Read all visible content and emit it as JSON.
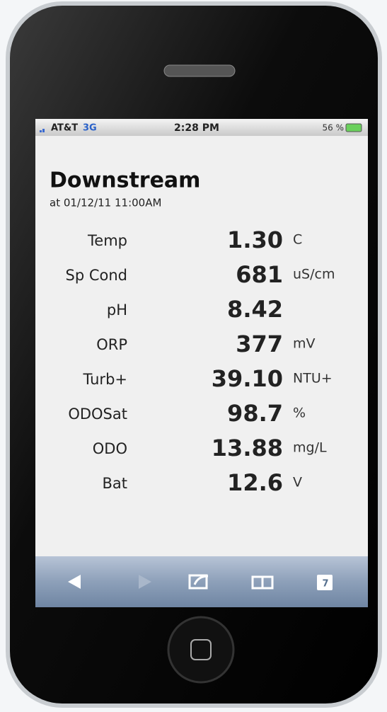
{
  "status_bar": {
    "carrier": "AT&T",
    "network": "3G",
    "time": "2:28 PM",
    "battery": "56 %"
  },
  "header": {
    "title": "Downstream",
    "timestamp": "at 01/12/11  11:00AM"
  },
  "readings": [
    {
      "label": "Temp",
      "value": "1.30",
      "unit": "C"
    },
    {
      "label": "Sp Cond",
      "value": "681",
      "unit": "uS/cm"
    },
    {
      "label": "pH",
      "value": "8.42"
    },
    {
      "label": "ORP",
      "value": "377",
      "unit": "mV"
    },
    {
      "label": "Turb+",
      "value": "39.10",
      "unit": "NTU+"
    },
    {
      "label": "ODOSat",
      "value": "98.7",
      "unit": "%"
    },
    {
      "label": "ODO",
      "value": "13.88",
      "unit": "mg/L"
    },
    {
      "label": "Bat",
      "value": "12.6",
      "unit": "V"
    }
  ],
  "toolbar": {
    "tabs_count": "7"
  }
}
